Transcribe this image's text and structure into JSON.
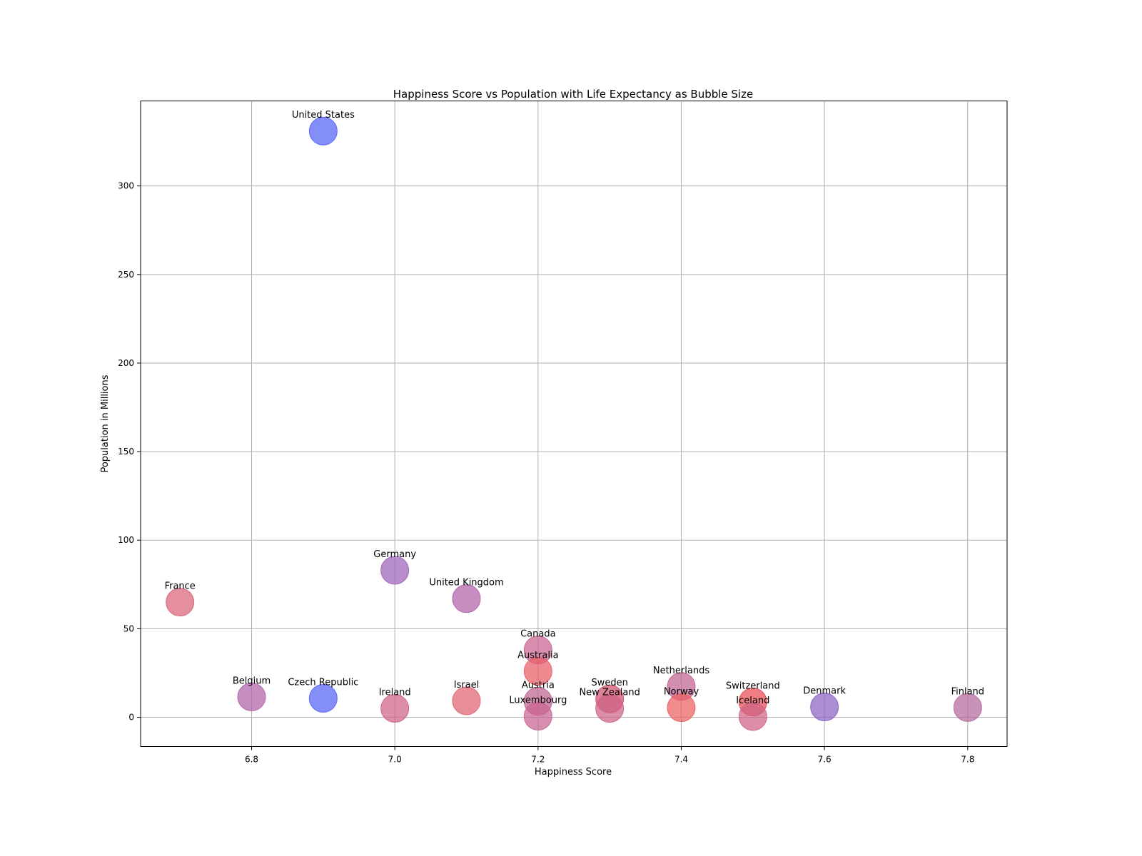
{
  "chart_data": {
    "type": "scatter",
    "title": "Happiness Score vs Population with Life Expectancy as Bubble Size",
    "xlabel": "Happiness Score",
    "ylabel": "Population in Millions",
    "xlim": [
      6.645,
      7.855
    ],
    "ylim": [
      -16.5,
      348
    ],
    "xticks": [
      6.8,
      7.0,
      7.2,
      7.4,
      7.6,
      7.8
    ],
    "xtick_labels": [
      "6.8",
      "7.0",
      "7.2",
      "7.4",
      "7.6",
      "7.8"
    ],
    "yticks": [
      0,
      50,
      100,
      150,
      200,
      250,
      300
    ],
    "ytick_labels": [
      "0",
      "50",
      "100",
      "150",
      "200",
      "250",
      "300"
    ],
    "grid": true,
    "points": [
      {
        "label": "United States",
        "x": 6.9,
        "y": 331,
        "color": "#5563f6"
      },
      {
        "label": "France",
        "x": 6.7,
        "y": 65,
        "color": "#d96378"
      },
      {
        "label": "Germany",
        "x": 7.0,
        "y": 83,
        "color": "#9c63b8"
      },
      {
        "label": "United Kingdom",
        "x": 7.1,
        "y": 67,
        "color": "#b063a8"
      },
      {
        "label": "Canada",
        "x": 7.2,
        "y": 38,
        "color": "#c86390"
      },
      {
        "label": "Australia",
        "x": 7.2,
        "y": 26,
        "color": "#e85e66"
      },
      {
        "label": "Belgium",
        "x": 6.8,
        "y": 11.5,
        "color": "#b063a8"
      },
      {
        "label": "Czech Republic",
        "x": 6.9,
        "y": 10.7,
        "color": "#5563f6"
      },
      {
        "label": "Ireland",
        "x": 7.0,
        "y": 5,
        "color": "#cf6383"
      },
      {
        "label": "Israel",
        "x": 7.1,
        "y": 9.3,
        "color": "#df6370"
      },
      {
        "label": "Austria",
        "x": 7.2,
        "y": 9,
        "color": "#c0638f"
      },
      {
        "label": "Luxembourg",
        "x": 7.2,
        "y": 0.6,
        "color": "#c86390"
      },
      {
        "label": "Sweden",
        "x": 7.3,
        "y": 10.4,
        "color": "#d4506c"
      },
      {
        "label": "New Zealand",
        "x": 7.3,
        "y": 5,
        "color": "#cc6385"
      },
      {
        "label": "Netherlands",
        "x": 7.4,
        "y": 17.4,
        "color": "#c0638f"
      },
      {
        "label": "Norway",
        "x": 7.4,
        "y": 5.4,
        "color": "#ec6060"
      },
      {
        "label": "Switzerland",
        "x": 7.5,
        "y": 8.6,
        "color": "#e84c54"
      },
      {
        "label": "Iceland",
        "x": 7.5,
        "y": 0.4,
        "color": "#cf6383"
      },
      {
        "label": "Denmark",
        "x": 7.6,
        "y": 5.8,
        "color": "#8a63c4"
      },
      {
        "label": "Finland",
        "x": 7.8,
        "y": 5.5,
        "color": "#b46a9c"
      }
    ]
  }
}
